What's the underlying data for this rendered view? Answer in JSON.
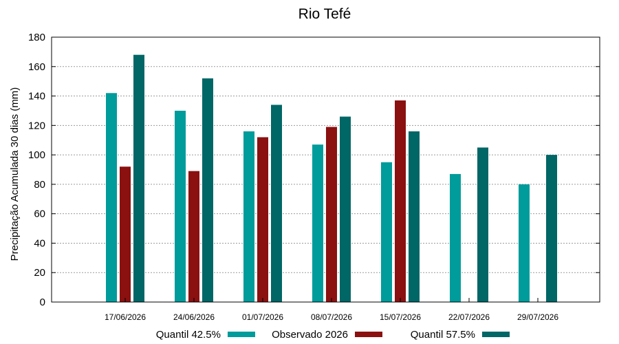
{
  "chart_data": {
    "type": "bar",
    "title": "Rio Tefé",
    "xlabel": "",
    "ylabel": "Precipitação Acumulada 30 dias (mm)",
    "ylim": [
      0,
      180
    ],
    "yticks": [
      0,
      20,
      40,
      60,
      80,
      100,
      120,
      140,
      160,
      180
    ],
    "grid": true,
    "legend_position": "bottom",
    "categories": [
      "17/06/2026",
      "24/06/2026",
      "01/07/2026",
      "08/07/2026",
      "15/07/2026",
      "22/07/2026",
      "29/07/2026"
    ],
    "series": [
      {
        "name": "Quantil 42.5%",
        "color": "#009b9b",
        "values": [
          142,
          130,
          116,
          107,
          95,
          87,
          80
        ]
      },
      {
        "name": "Observado 2026",
        "color": "#8b1010",
        "values": [
          92,
          89,
          112,
          119,
          137,
          null,
          null
        ]
      },
      {
        "name": "Quantil 57.5%",
        "color": "#006666",
        "values": [
          168,
          152,
          134,
          126,
          116,
          105,
          100
        ]
      }
    ]
  }
}
